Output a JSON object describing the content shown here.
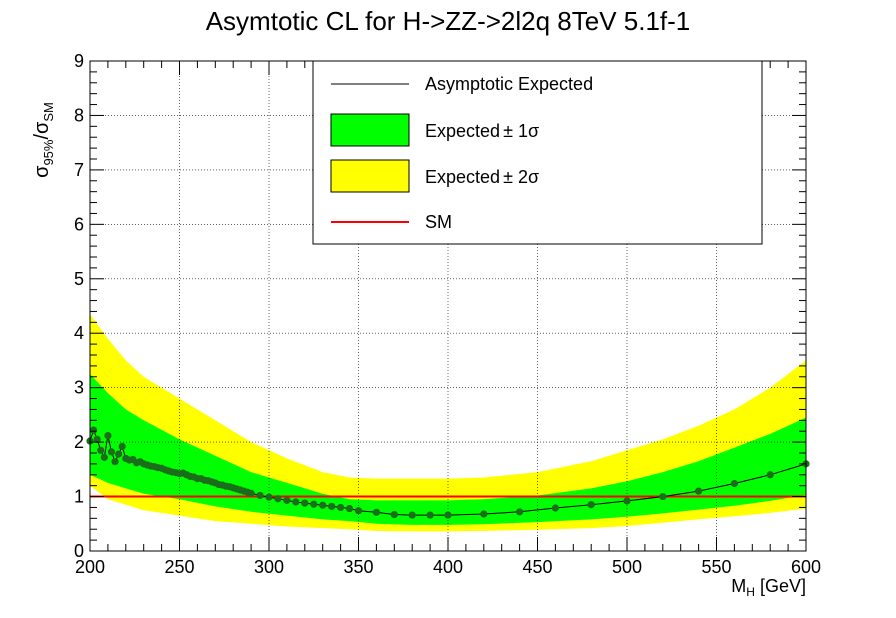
{
  "chart_data": {
    "type": "line",
    "title": "Asymtotic CL for H->ZZ->2l2q  8TeV  5.1f-1",
    "xlabel": "M",
    "xlabel_sub": "H",
    "xlabel_unit": " [GeV]",
    "ylabel_sigma": "σ",
    "ylabel_sub1": "95%",
    "ylabel_sep": "/",
    "ylabel_sub2": "SM",
    "xlim": [
      200,
      600
    ],
    "ylim": [
      0,
      9
    ],
    "xticks": [
      200,
      250,
      300,
      350,
      400,
      450,
      500,
      550,
      600
    ],
    "yticks": [
      0,
      1,
      2,
      3,
      4,
      5,
      6,
      7,
      8,
      9
    ],
    "grid": true,
    "legend_position": "top-right",
    "legend": {
      "expected": "Asymptotic Expected",
      "one_sigma": "Expected",
      "one_sigma_pm": "± 1σ",
      "two_sigma": "Expected",
      "two_sigma_pm": "± 2σ",
      "sm": "SM"
    },
    "colors": {
      "one_sigma": "#00ff00",
      "two_sigma": "#ffff00",
      "expected_line": "#000000",
      "marker": "#1a6e1a",
      "sm": "#ff0000"
    },
    "sm_value": 1.0,
    "series": [
      {
        "name": "Asymptotic Expected",
        "x": [
          200,
          202,
          204,
          206,
          208,
          210,
          212,
          214,
          216,
          218,
          220,
          222,
          224,
          226,
          228,
          230,
          232,
          234,
          236,
          238,
          240,
          242,
          244,
          246,
          248,
          250,
          252,
          254,
          256,
          258,
          260,
          262,
          264,
          266,
          268,
          270,
          272,
          274,
          276,
          278,
          280,
          282,
          284,
          286,
          288,
          290,
          295,
          300,
          305,
          310,
          315,
          320,
          325,
          330,
          335,
          340,
          345,
          350,
          360,
          370,
          380,
          390,
          400,
          420,
          440,
          460,
          480,
          500,
          520,
          540,
          560,
          580,
          600
        ],
        "values": [
          2.02,
          2.22,
          2.05,
          1.85,
          1.72,
          2.12,
          1.82,
          1.64,
          1.78,
          1.92,
          1.7,
          1.67,
          1.68,
          1.62,
          1.64,
          1.6,
          1.58,
          1.56,
          1.55,
          1.53,
          1.52,
          1.49,
          1.47,
          1.45,
          1.44,
          1.42,
          1.43,
          1.4,
          1.37,
          1.36,
          1.33,
          1.33,
          1.3,
          1.29,
          1.27,
          1.25,
          1.22,
          1.21,
          1.19,
          1.18,
          1.16,
          1.14,
          1.12,
          1.1,
          1.08,
          1.06,
          1.02,
          0.99,
          0.96,
          0.93,
          0.9,
          0.88,
          0.86,
          0.84,
          0.82,
          0.8,
          0.78,
          0.74,
          0.71,
          0.67,
          0.66,
          0.66,
          0.66,
          0.68,
          0.72,
          0.79,
          0.85,
          0.92,
          1.0,
          1.1,
          1.24,
          1.4,
          1.6
        ]
      }
    ],
    "bands": {
      "x": [
        200,
        210,
        220,
        230,
        250,
        270,
        290,
        310,
        330,
        345,
        360,
        380,
        400,
        420,
        450,
        480,
        500,
        520,
        540,
        560,
        580,
        600
      ],
      "plus2": [
        4.35,
        3.9,
        3.5,
        3.2,
        2.8,
        2.4,
        2.0,
        1.7,
        1.45,
        1.35,
        1.33,
        1.33,
        1.33,
        1.35,
        1.45,
        1.65,
        1.85,
        2.05,
        2.3,
        2.6,
        3.0,
        3.5
      ],
      "plus1": [
        3.25,
        2.9,
        2.6,
        2.4,
        2.05,
        1.75,
        1.45,
        1.25,
        1.05,
        0.95,
        0.93,
        0.93,
        0.93,
        0.95,
        1.02,
        1.15,
        1.28,
        1.45,
        1.65,
        1.9,
        2.15,
        2.45
      ],
      "minus1": [
        1.4,
        1.25,
        1.15,
        1.05,
        0.95,
        0.82,
        0.72,
        0.65,
        0.58,
        0.55,
        0.5,
        0.48,
        0.48,
        0.49,
        0.53,
        0.58,
        0.63,
        0.69,
        0.76,
        0.83,
        0.92,
        1.03
      ],
      "minus2": [
        1.2,
        0.95,
        0.85,
        0.75,
        0.65,
        0.55,
        0.5,
        0.45,
        0.42,
        0.4,
        0.37,
        0.36,
        0.36,
        0.37,
        0.39,
        0.42,
        0.46,
        0.52,
        0.58,
        0.64,
        0.7,
        0.78
      ]
    }
  }
}
